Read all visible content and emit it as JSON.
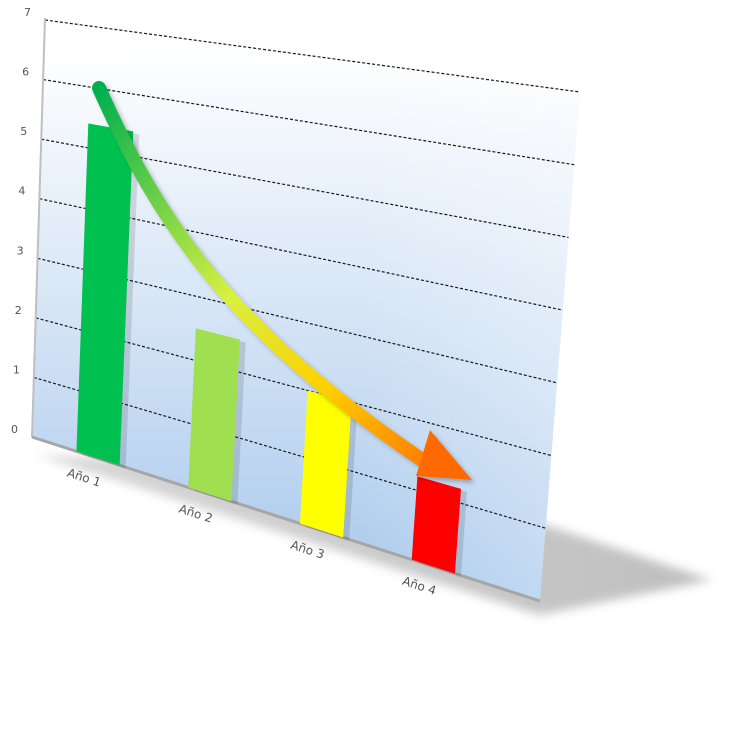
{
  "chart_data": {
    "type": "bar",
    "title": "",
    "xlabel": "",
    "ylabel": "",
    "categories": [
      "Año 1",
      "Año 2",
      "Año 3",
      "Año 4"
    ],
    "values": [
      5.4,
      2.5,
      2.0,
      1.2
    ],
    "ylim": [
      0,
      7
    ],
    "yticks": [
      0,
      1,
      2,
      3,
      4,
      5,
      6,
      7
    ],
    "grid": true,
    "legend": "none",
    "perspective": "3d-tilted",
    "trend_arrow": {
      "direction": "decreasing",
      "from_color": "#00b050",
      "to_color": "#ff6600"
    },
    "colors": {
      "bars": [
        "#00c050",
        "#a0e050",
        "#ffff00",
        "#ff0000"
      ],
      "background_top": "#ffffff",
      "background_bottom": "#a8c8ec",
      "gridline": "#1a1a1a",
      "shadow": "#bdbdbd"
    }
  }
}
